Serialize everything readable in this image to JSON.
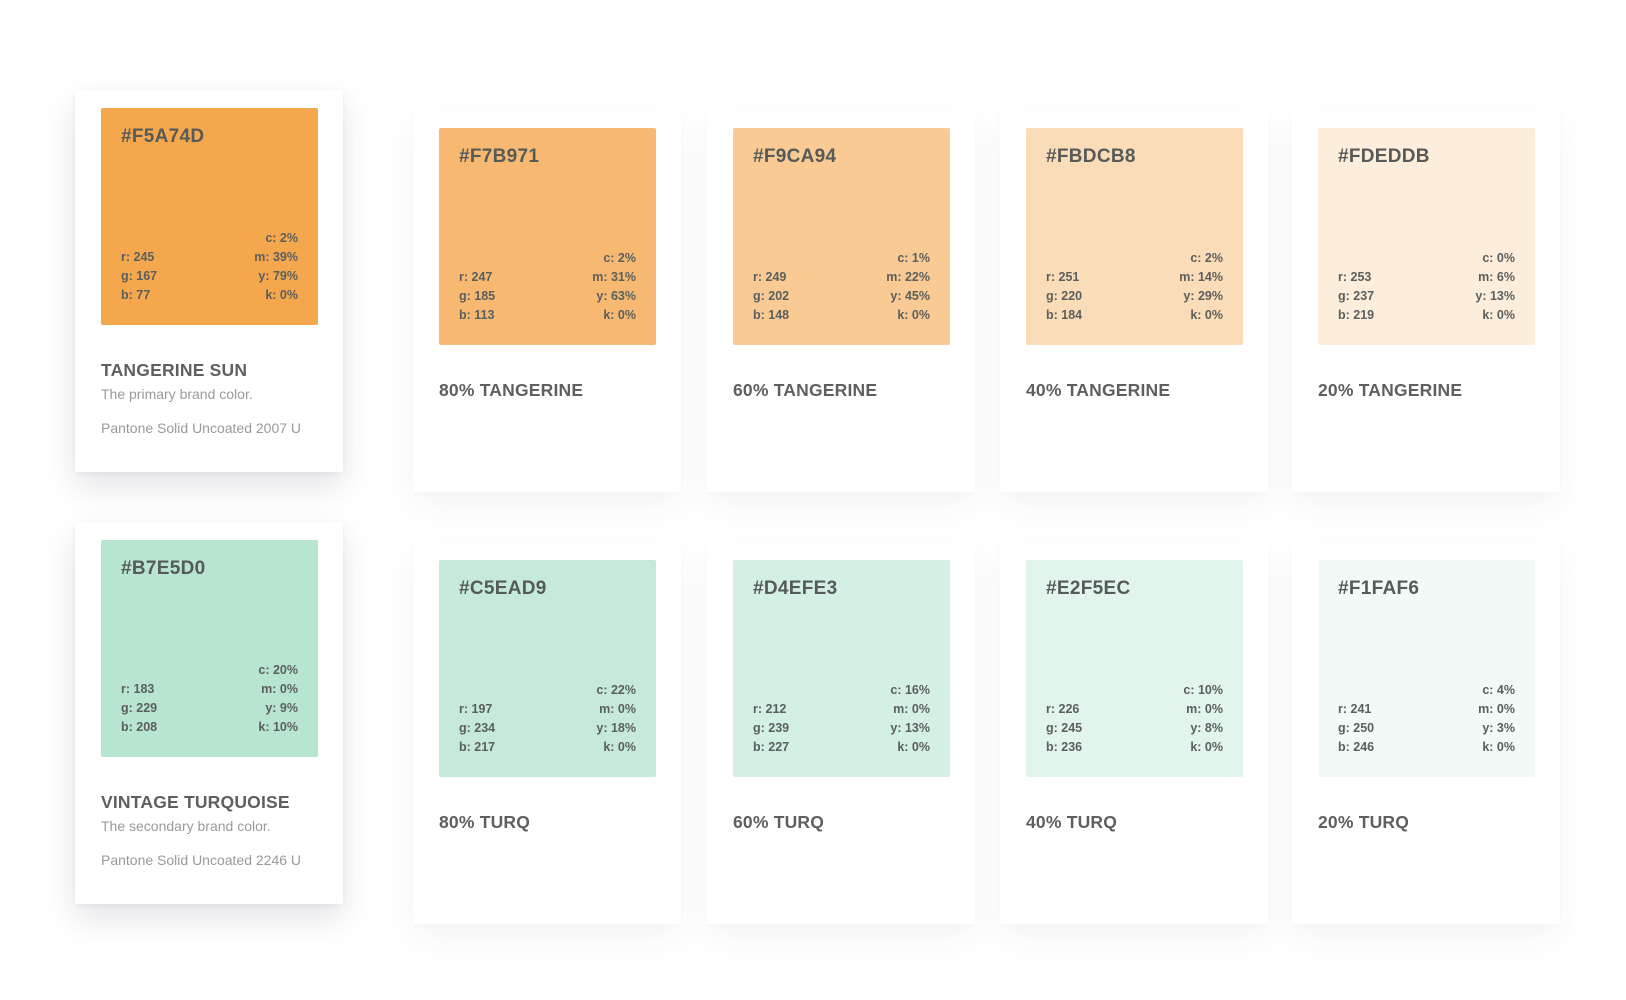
{
  "primaries": [
    {
      "hex": "#F5A74D",
      "color": "#F5A74D",
      "r": "r: 245",
      "g": "g: 167",
      "b": "b: 77",
      "c": "c: 2%",
      "m": "m: 39%",
      "y": "y: 79%",
      "k": "k: 0%",
      "name": "TANGERINE SUN",
      "description": "The primary brand color.",
      "pantone": "Pantone Solid Uncoated 2007 U"
    },
    {
      "hex": "#B7E5D0",
      "color": "#B7E5D0",
      "r": "r: 183",
      "g": "g: 229",
      "b": "b: 208",
      "c": "c: 20%",
      "m": "m: 0%",
      "y": "y: 9%",
      "k": "k: 10%",
      "name": "VINTAGE TURQUOISE",
      "description": "The secondary brand color.",
      "pantone": "Pantone Solid Uncoated 2246 U"
    }
  ],
  "tangerine_tints": [
    {
      "hex": "#F7B971",
      "color": "#F7B971",
      "r": "r: 247",
      "g": "g: 185",
      "b": "b: 113",
      "c": "c: 2%",
      "m": "m: 31%",
      "y": "y: 63%",
      "k": "k: 0%",
      "name": "80% TANGERINE"
    },
    {
      "hex": "#F9CA94",
      "color": "#F9CA94",
      "r": "r: 249",
      "g": "g: 202",
      "b": "b: 148",
      "c": "c: 1%",
      "m": "m: 22%",
      "y": "y: 45%",
      "k": "k: 0%",
      "name": "60% TANGERINE"
    },
    {
      "hex": "#FBDCB8",
      "color": "#FBDCB8",
      "r": "r: 251",
      "g": "g: 220",
      "b": "b: 184",
      "c": "c: 2%",
      "m": "m: 14%",
      "y": "y: 29%",
      "k": "k: 0%",
      "name": "40% TANGERINE"
    },
    {
      "hex": "#FDEDDB",
      "color": "#FDEDDB",
      "r": "r: 253",
      "g": "g: 237",
      "b": "b: 219",
      "c": "c: 0%",
      "m": "m: 6%",
      "y": "y: 13%",
      "k": "k: 0%",
      "name": "20% TANGERINE"
    }
  ],
  "turq_tints": [
    {
      "hex": "#C5EAD9",
      "color": "#C5EAD9",
      "r": "r: 197",
      "g": "g: 234",
      "b": "b: 217",
      "c": "c: 22%",
      "m": "m: 0%",
      "y": "y: 18%",
      "k": "k: 0%",
      "name": "80% TURQ"
    },
    {
      "hex": "#D4EFE3",
      "color": "#D4EFE3",
      "r": "r: 212",
      "g": "g: 239",
      "b": "b: 227",
      "c": "c: 16%",
      "m": "m: 0%",
      "y": "y: 13%",
      "k": "k: 0%",
      "name": "60% TURQ"
    },
    {
      "hex": "#E2F5EC",
      "color": "#E2F5EC",
      "r": "r: 226",
      "g": "g: 245",
      "b": "b: 236",
      "c": "c: 10%",
      "m": "m: 0%",
      "y": "y: 8%",
      "k": "k: 0%",
      "name": "40% TURQ"
    },
    {
      "hex": "#F1FAF6",
      "color": "#F1FAF6",
      "r": "r: 241",
      "g": "g: 250",
      "b": "b: 246",
      "c": "c: 4%",
      "m": "m: 0%",
      "y": "y: 3%",
      "k": "k: 0%",
      "name": "20% TURQ"
    }
  ]
}
